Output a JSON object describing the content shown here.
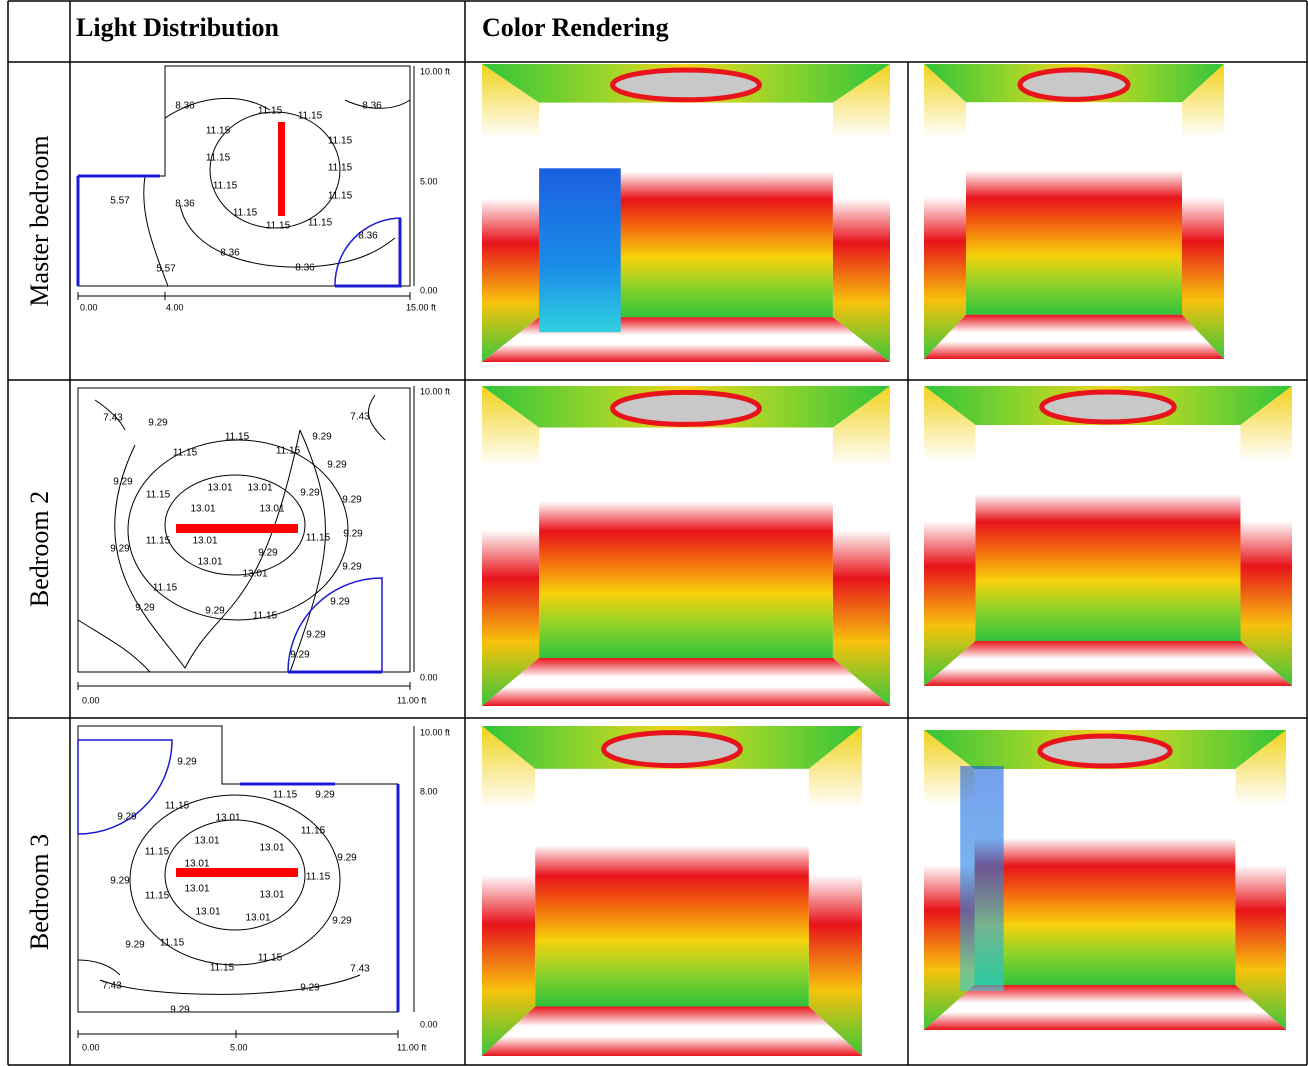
{
  "headers": [
    "Light Distribution",
    "Color Rendering"
  ],
  "rows": [
    {
      "label": "Master bedroom",
      "axis_labels": [
        "10.00 ft",
        "5.00",
        "0.00",
        "0.00",
        "4.00",
        "15.00 ft"
      ],
      "contour_labels": [
        "8.36",
        "8.36",
        "11.15",
        "11.15",
        "11.15",
        "11.15",
        "11.15",
        "11.15",
        "11.15",
        "11.15",
        "11.15",
        "11.15",
        "11.15",
        "5.57",
        "8.36",
        "8.36",
        "8.36",
        "8.36",
        "5.57"
      ]
    },
    {
      "label": "Bedroom 2",
      "axis_labels": [
        "10.00 ft",
        "0.00",
        "0.00",
        "11.00 ft"
      ],
      "contour_labels": [
        "7.43",
        "9.29",
        "7.43",
        "11.15",
        "9.29",
        "11.15",
        "11.15",
        "9.29",
        "9.29",
        "11.15",
        "13.01",
        "13.01",
        "9.29",
        "9.29",
        "13.01",
        "13.01",
        "9.29",
        "11.15",
        "13.01",
        "11.15",
        "9.29",
        "9.29",
        "13.01",
        "13.01",
        "9.29",
        "11.15",
        "9.29",
        "9.29",
        "9.29",
        "11.15",
        "9.29",
        "9.29"
      ]
    },
    {
      "label": "Bedroom 3",
      "axis_labels": [
        "10.00 ft",
        "8.00",
        "0.00",
        "0.00",
        "5.00",
        "11.00 ft"
      ],
      "contour_labels": [
        "9.29",
        "11.15",
        "9.29",
        "11.15",
        "9.29",
        "13.01",
        "11.15",
        "13.01",
        "13.01",
        "11.15",
        "9.29",
        "13.01",
        "11.15",
        "9.29",
        "11.15",
        "13.01",
        "13.01",
        "13.01",
        "13.01",
        "9.29",
        "9.29",
        "11.15",
        "11.15",
        "11.15",
        "7.43",
        "7.43",
        "9.29",
        "9.29"
      ]
    }
  ]
}
